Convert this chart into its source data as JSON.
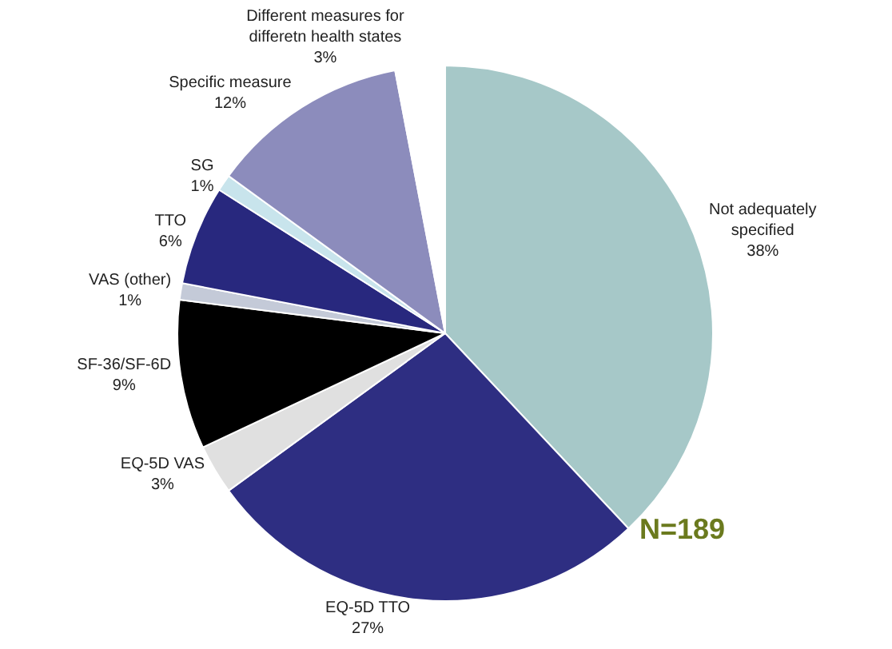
{
  "chart_data": {
    "type": "pie",
    "categories": [
      "Not adequately\nspecified",
      "EQ-5D TTO",
      "EQ-5D VAS",
      "SF-36/SF-6D",
      "VAS (other)",
      "TTO",
      "SG",
      "Specific measure",
      "Different measures for\ndifferetn health states"
    ],
    "values": [
      38,
      27,
      3,
      9,
      1,
      6,
      1,
      12,
      3
    ],
    "value_labels": [
      "38%",
      "27%",
      "3%",
      "9%",
      "1%",
      "6%",
      "1%",
      "12%",
      "3%"
    ],
    "colors": [
      "#a6c8c8",
      "#2e2e82",
      "#e0e0e0",
      "#000000",
      "#c4cad8",
      "#28287e",
      "#c8e4ec",
      "#8c8cbc",
      "#ffffff"
    ],
    "annotations": [
      "N=189"
    ],
    "legend": false
  }
}
